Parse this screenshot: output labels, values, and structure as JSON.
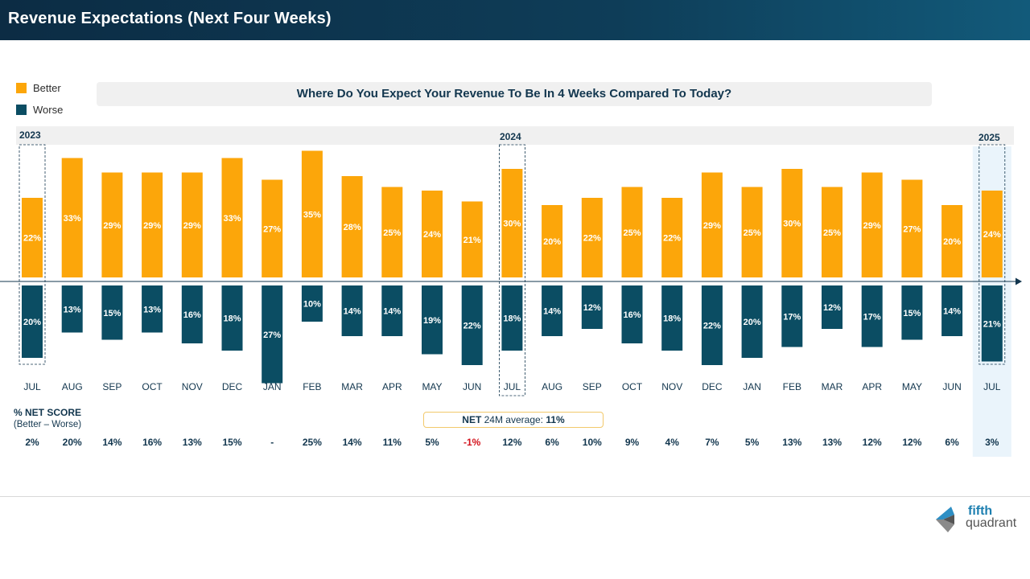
{
  "header": {
    "title": "Revenue Expectations (Next Four Weeks)"
  },
  "legend": [
    {
      "label": "Better",
      "color": "#fca60a"
    },
    {
      "label": "Worse",
      "color": "#0b4d63"
    }
  ],
  "question": "Where Do You Expect Your Revenue To Be In 4 Weeks Compared To Today?",
  "years": {
    "y2023": "2023",
    "y2024": "2024",
    "y2025": "2025"
  },
  "net": {
    "title": "% NET SCORE",
    "subtitle": "(Better – Worse)",
    "avg_prefix": "NET",
    "avg_label": "24M average:",
    "avg_value": "11%",
    "negative_color": "#d3121c"
  },
  "colors": {
    "better": "#fca60a",
    "worse": "#0b4d63",
    "text": "#12364e",
    "highlight": "#eaf4fb"
  },
  "chart_data": {
    "type": "bar",
    "categories": [
      "JUL",
      "AUG",
      "SEP",
      "OCT",
      "NOV",
      "DEC",
      "JAN",
      "FEB",
      "MAR",
      "APR",
      "MAY",
      "JUN",
      "JUL",
      "AUG",
      "SEP",
      "OCT",
      "NOV",
      "DEC",
      "JAN",
      "FEB",
      "MAR",
      "APR",
      "MAY",
      "JUN",
      "JUL"
    ],
    "series": [
      {
        "name": "Better",
        "values": [
          22,
          33,
          29,
          29,
          29,
          33,
          27,
          35,
          28,
          25,
          24,
          21,
          30,
          20,
          22,
          25,
          22,
          29,
          25,
          30,
          25,
          29,
          27,
          20,
          24
        ]
      },
      {
        "name": "Worse",
        "values": [
          20,
          13,
          15,
          13,
          16,
          18,
          27,
          10,
          14,
          14,
          19,
          22,
          18,
          14,
          12,
          16,
          18,
          22,
          20,
          17,
          12,
          17,
          15,
          14,
          21
        ]
      }
    ],
    "net_score": [
      "2%",
      "20%",
      "14%",
      "16%",
      "13%",
      "15%",
      "-",
      "25%",
      "14%",
      "11%",
      "5%",
      "-1%",
      "12%",
      "6%",
      "10%",
      "9%",
      "4%",
      "7%",
      "5%",
      "13%",
      "13%",
      "12%",
      "12%",
      "6%",
      "3%"
    ],
    "title": "Where Do You Expect Your Revenue To Be In 4 Weeks Compared To Today?",
    "xlabel": "",
    "ylabel": ""
  }
}
